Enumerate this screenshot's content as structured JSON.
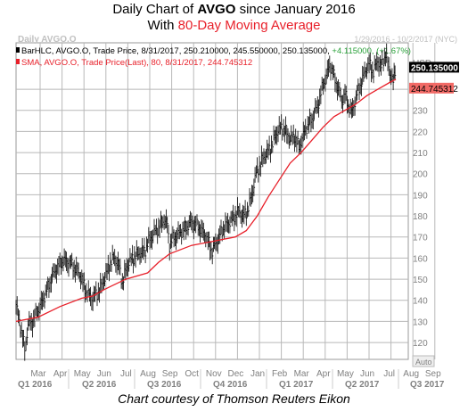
{
  "header": {
    "title_prefix": "Daily Chart of ",
    "title_ticker": "AVGO",
    "title_suffix": " since January 2016",
    "subtitle_prefix": "With ",
    "subtitle_highlight": "80-Day Moving Average"
  },
  "caption": "Chart courtesy of Thomson Reuters Eikon",
  "chart_data": {
    "type": "line",
    "watermark": "Daily AVGO.O",
    "date_range": "1/29/2016 - 10/2/2017 (NYC)",
    "legend": [
      {
        "text": "BarHLC, AVGO.O, Trade Price, 8/31/2017, 250.210000, 245.550000, 250.135000, ",
        "change": "+4.115000, (+1.67%)",
        "color": "#000000"
      },
      {
        "text": "SMA, AVGO.O, Trade Price(Last), 80, 8/31/2017, 244.745312",
        "change": "",
        "color": "#e8202a"
      }
    ],
    "currency": "USD",
    "ylim": [
      112,
      262
    ],
    "yticks": [
      120,
      130,
      140,
      150,
      160,
      170,
      180,
      190,
      200,
      210,
      220,
      230,
      240
    ],
    "x_months": [
      "Mar",
      "Apr",
      "May",
      "Jun",
      "Jul",
      "Aug",
      "Sep",
      "Oct",
      "Nov",
      "Dec",
      "Jan",
      "Feb",
      "Mar",
      "Apr",
      "May",
      "Jun",
      "Jul",
      "Aug",
      "Sep"
    ],
    "x_quarters": [
      "Q1 2016",
      "Q2 2016",
      "Q3 2016",
      "Q4 2016",
      "Q1 2017",
      "Q2 2017",
      "Q3 2017"
    ],
    "last_price_label": "250.135000",
    "sma_label": "244.745312",
    "auto_label": "Auto",
    "price_series": [
      {
        "m": 0.0,
        "v": 138
      },
      {
        "m": 0.25,
        "v": 125
      },
      {
        "m": 0.4,
        "v": 117
      },
      {
        "m": 0.55,
        "v": 128
      },
      {
        "m": 0.75,
        "v": 130
      },
      {
        "m": 1.0,
        "v": 135
      },
      {
        "m": 1.3,
        "v": 142
      },
      {
        "m": 1.6,
        "v": 150
      },
      {
        "m": 1.9,
        "v": 156
      },
      {
        "m": 2.2,
        "v": 159
      },
      {
        "m": 2.5,
        "v": 157
      },
      {
        "m": 2.8,
        "v": 154
      },
      {
        "m": 3.0,
        "v": 150
      },
      {
        "m": 3.2,
        "v": 144
      },
      {
        "m": 3.45,
        "v": 141
      },
      {
        "m": 3.7,
        "v": 143
      },
      {
        "m": 3.9,
        "v": 147
      },
      {
        "m": 4.1,
        "v": 152
      },
      {
        "m": 4.3,
        "v": 158
      },
      {
        "m": 4.5,
        "v": 160
      },
      {
        "m": 4.7,
        "v": 156
      },
      {
        "m": 4.85,
        "v": 148
      },
      {
        "m": 5.05,
        "v": 156
      },
      {
        "m": 5.3,
        "v": 160
      },
      {
        "m": 5.6,
        "v": 162
      },
      {
        "m": 5.9,
        "v": 164
      },
      {
        "m": 6.1,
        "v": 169
      },
      {
        "m": 6.3,
        "v": 172
      },
      {
        "m": 6.55,
        "v": 175
      },
      {
        "m": 6.75,
        "v": 178
      },
      {
        "m": 6.9,
        "v": 176
      },
      {
        "m": 7.0,
        "v": 166
      },
      {
        "m": 7.2,
        "v": 170
      },
      {
        "m": 7.5,
        "v": 172
      },
      {
        "m": 7.8,
        "v": 175
      },
      {
        "m": 8.0,
        "v": 177
      },
      {
        "m": 8.3,
        "v": 175
      },
      {
        "m": 8.55,
        "v": 172
      },
      {
        "m": 8.75,
        "v": 168
      },
      {
        "m": 8.95,
        "v": 163
      },
      {
        "m": 9.15,
        "v": 168
      },
      {
        "m": 9.35,
        "v": 172
      },
      {
        "m": 9.6,
        "v": 176
      },
      {
        "m": 9.85,
        "v": 178
      },
      {
        "m": 10.1,
        "v": 182
      },
      {
        "m": 10.35,
        "v": 180
      },
      {
        "m": 10.55,
        "v": 182
      },
      {
        "m": 10.75,
        "v": 190
      },
      {
        "m": 10.95,
        "v": 200
      },
      {
        "m": 11.2,
        "v": 206
      },
      {
        "m": 11.45,
        "v": 210
      },
      {
        "m": 11.7,
        "v": 214
      },
      {
        "m": 11.9,
        "v": 220
      },
      {
        "m": 12.1,
        "v": 222
      },
      {
        "m": 12.3,
        "v": 220
      },
      {
        "m": 12.5,
        "v": 216
      },
      {
        "m": 12.7,
        "v": 218
      },
      {
        "m": 12.9,
        "v": 212
      },
      {
        "m": 13.05,
        "v": 217
      },
      {
        "m": 13.25,
        "v": 222
      },
      {
        "m": 13.5,
        "v": 226
      },
      {
        "m": 13.75,
        "v": 232
      },
      {
        "m": 13.95,
        "v": 240
      },
      {
        "m": 14.15,
        "v": 246
      },
      {
        "m": 14.3,
        "v": 252
      },
      {
        "m": 14.5,
        "v": 246
      },
      {
        "m": 14.7,
        "v": 240
      },
      {
        "m": 14.85,
        "v": 234
      },
      {
        "m": 15.0,
        "v": 238
      },
      {
        "m": 15.15,
        "v": 232
      },
      {
        "m": 15.3,
        "v": 229
      },
      {
        "m": 15.5,
        "v": 236
      },
      {
        "m": 15.7,
        "v": 242
      },
      {
        "m": 15.9,
        "v": 248
      },
      {
        "m": 16.1,
        "v": 252
      },
      {
        "m": 16.3,
        "v": 248
      },
      {
        "m": 16.5,
        "v": 254
      },
      {
        "m": 16.65,
        "v": 250
      },
      {
        "m": 16.85,
        "v": 257
      },
      {
        "m": 17.05,
        "v": 248
      },
      {
        "m": 17.2,
        "v": 243
      },
      {
        "m": 17.32,
        "v": 250
      }
    ],
    "sma_series": [
      {
        "m": 0.0,
        "v": 130
      },
      {
        "m": 1.0,
        "v": 132
      },
      {
        "m": 2.0,
        "v": 137
      },
      {
        "m": 3.0,
        "v": 141
      },
      {
        "m": 3.5,
        "v": 142
      },
      {
        "m": 4.0,
        "v": 145
      },
      {
        "m": 5.0,
        "v": 150
      },
      {
        "m": 6.0,
        "v": 153
      },
      {
        "m": 6.5,
        "v": 158
      },
      {
        "m": 7.0,
        "v": 162
      },
      {
        "m": 8.0,
        "v": 166
      },
      {
        "m": 9.0,
        "v": 168
      },
      {
        "m": 10.0,
        "v": 170
      },
      {
        "m": 10.5,
        "v": 173
      },
      {
        "m": 11.0,
        "v": 180
      },
      {
        "m": 11.5,
        "v": 189
      },
      {
        "m": 12.0,
        "v": 197
      },
      {
        "m": 12.5,
        "v": 205
      },
      {
        "m": 13.0,
        "v": 210
      },
      {
        "m": 13.5,
        "v": 216
      },
      {
        "m": 14.0,
        "v": 222
      },
      {
        "m": 14.5,
        "v": 227
      },
      {
        "m": 15.0,
        "v": 230
      },
      {
        "m": 15.5,
        "v": 233
      },
      {
        "m": 16.0,
        "v": 237
      },
      {
        "m": 16.5,
        "v": 240
      },
      {
        "m": 17.0,
        "v": 243
      },
      {
        "m": 17.32,
        "v": 244.75
      }
    ],
    "colors": {
      "price": "#000000",
      "sma": "#e8202a",
      "grid": "#b8b8b8",
      "axis_text": "#808080"
    }
  }
}
